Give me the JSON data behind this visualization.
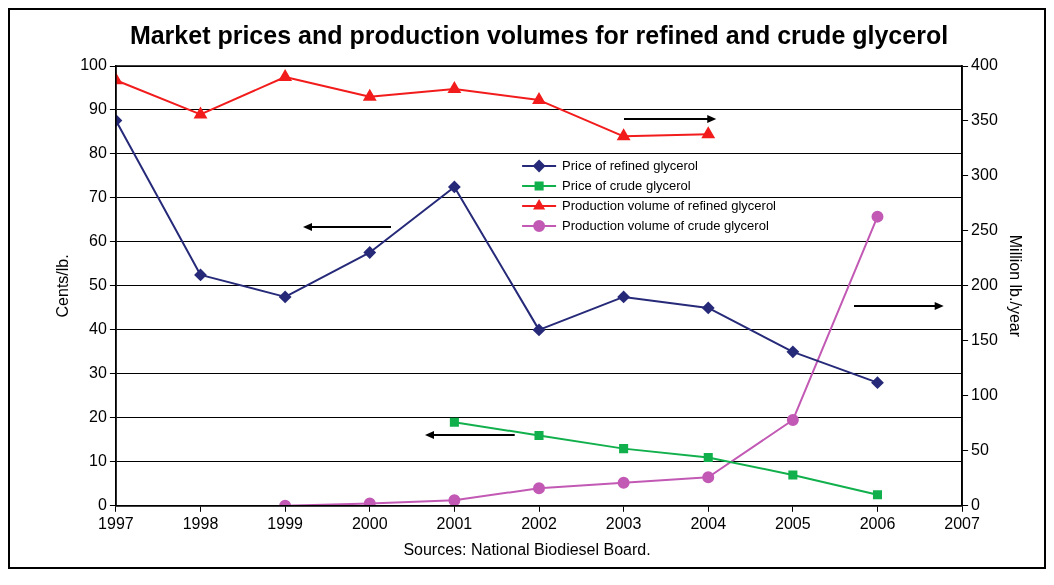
{
  "chart_data": {
    "type": "line",
    "title": "Market prices and production volumes for refined and crude glycerol",
    "ylabel": "Cents/lb.",
    "y2label": "Million lb./year",
    "annotations": [
      "Sources: National Biodiesel Board."
    ],
    "x": [
      1997,
      1998,
      1999,
      2000,
      2001,
      2002,
      2003,
      2004,
      2005,
      2006
    ],
    "series": [
      {
        "name": "Price of refined glycerol",
        "color": "#262a78",
        "marker": "diamond",
        "values": [
          87.6,
          52.5,
          47.5,
          57.6,
          72.5,
          40,
          47.5,
          45,
          35,
          28
        ]
      },
      {
        "name": "Price of crude glycerol",
        "color": "#11b04c",
        "marker": "square",
        "values": [
          null,
          null,
          null,
          null,
          19,
          16,
          13,
          11,
          7,
          2.5
        ]
      },
      {
        "name": "Production volume of refined glycerol",
        "color": "#f21c1c",
        "marker": "triangle",
        "axis": "y2",
        "values": [
          387,
          356,
          390,
          372,
          379,
          369,
          336,
          338,
          null,
          null
        ]
      },
      {
        "name": "Production volume of crude glycerol",
        "color": "#c259b4",
        "marker": "circle",
        "axis": "y2",
        "values": [
          null,
          null,
          0,
          2,
          5,
          16,
          21,
          26,
          78,
          263
        ]
      }
    ],
    "xlim": [
      1997,
      2007
    ],
    "xticks": [
      1997,
      1998,
      1999,
      2000,
      2001,
      2002,
      2003,
      2004,
      2005,
      2006,
      2007
    ],
    "ylim": [
      0,
      100
    ],
    "yticks": [
      0,
      10,
      20,
      30,
      40,
      50,
      60,
      70,
      80,
      90,
      100
    ],
    "y2lim": [
      0,
      400
    ],
    "y2ticks": [
      0,
      50,
      100,
      150,
      200,
      250,
      300,
      350,
      400
    ],
    "grid": "y",
    "legend": "top right",
    "line_style": "solid"
  }
}
